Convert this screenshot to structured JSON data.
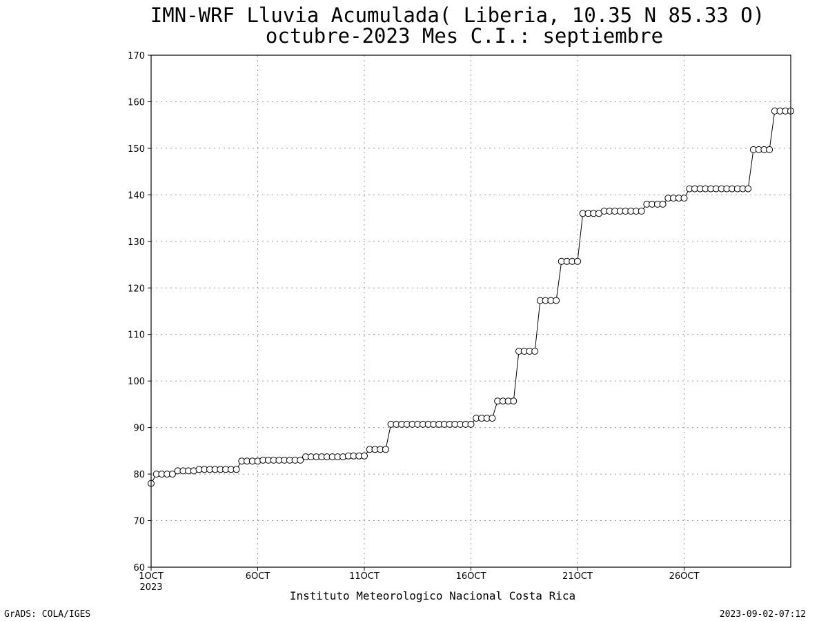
{
  "chart_data": {
    "type": "line",
    "title": "IMN-WRF  Lluvia Acumulada( Liberia, 10.35  N 85.33  O)",
    "subtitle": "octubre-2023 Mes C.I.: septiembre",
    "xlabel": "Instituto Meteorologico Nacional Costa Rica",
    "ylabel": "",
    "ylim": [
      60,
      170
    ],
    "yticks": [
      "60",
      "70",
      "80",
      "90",
      "100",
      "110",
      "120",
      "130",
      "140",
      "150",
      "160",
      "170"
    ],
    "xlim": [
      1,
      31
    ],
    "xticks": [
      {
        "x": 1,
        "label": "1OCT",
        "sublabel": "2023"
      },
      {
        "x": 6,
        "label": "6OCT",
        "sublabel": ""
      },
      {
        "x": 11,
        "label": "11OCT",
        "sublabel": ""
      },
      {
        "x": 16,
        "label": "16OCT",
        "sublabel": ""
      },
      {
        "x": 21,
        "label": "21OCT",
        "sublabel": ""
      },
      {
        "x": 26,
        "label": "26OCT",
        "sublabel": ""
      }
    ],
    "grid": true,
    "x_step_days": 0.25,
    "series": [
      {
        "marker": "open-circle",
        "values": [
          78.0,
          80.0,
          80.0,
          80.0,
          80.0,
          80.7,
          80.7,
          80.7,
          80.7,
          81.0,
          81.0,
          81.0,
          81.0,
          81.0,
          81.0,
          81.0,
          81.0,
          82.8,
          82.8,
          82.8,
          82.8,
          83.0,
          83.0,
          83.0,
          83.0,
          83.0,
          83.0,
          83.0,
          83.0,
          83.7,
          83.7,
          83.7,
          83.7,
          83.7,
          83.7,
          83.7,
          83.7,
          83.9,
          83.9,
          83.9,
          83.9,
          85.3,
          85.3,
          85.3,
          85.3,
          90.7,
          90.7,
          90.7,
          90.7,
          90.7,
          90.7,
          90.7,
          90.7,
          90.7,
          90.7,
          90.7,
          90.7,
          90.7,
          90.7,
          90.7,
          90.7,
          92.0,
          92.0,
          92.0,
          92.0,
          95.7,
          95.7,
          95.7,
          95.7,
          106.4,
          106.4,
          106.4,
          106.4,
          117.3,
          117.3,
          117.3,
          117.3,
          125.7,
          125.7,
          125.7,
          125.7,
          136.0,
          136.0,
          136.0,
          136.0,
          136.5,
          136.5,
          136.5,
          136.5,
          136.5,
          136.5,
          136.5,
          136.5,
          138.0,
          138.0,
          138.0,
          138.0,
          139.3,
          139.3,
          139.3,
          139.3,
          141.3,
          141.3,
          141.3,
          141.3,
          141.3,
          141.3,
          141.3,
          141.3,
          141.3,
          141.3,
          141.3,
          141.3,
          149.7,
          149.7,
          149.7,
          149.7,
          158.0,
          158.0,
          158.0,
          158.0
        ]
      }
    ]
  },
  "footer": {
    "left": "GrADS: COLA/IGES",
    "right": "2023-09-02-07:12"
  }
}
